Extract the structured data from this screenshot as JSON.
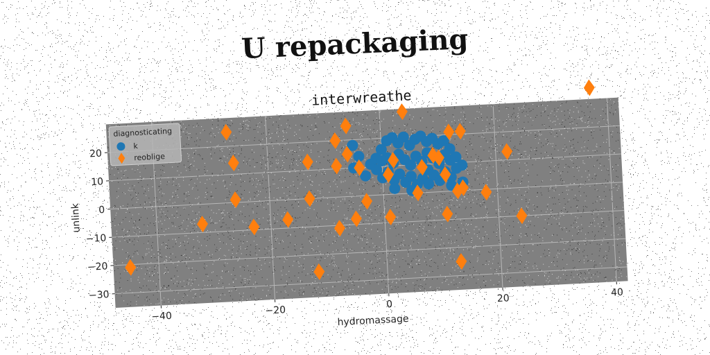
{
  "title": "U repackaging",
  "chart_data": {
    "type": "scatter",
    "title": "interwreathe",
    "xlabel": "hydromassage",
    "ylabel": "unlink",
    "xlim": [
      -48,
      42
    ],
    "ylim": [
      -35,
      30
    ],
    "xticks": [
      -40,
      -20,
      0,
      20,
      40
    ],
    "yticks": [
      -30,
      -20,
      -10,
      0,
      10,
      20
    ],
    "grid": true,
    "legend": {
      "title": "diagnosticating",
      "position": "top-left"
    },
    "colors": {
      "k": "#1f77b4",
      "reoblige": "#ff7f0e",
      "background": "#808080"
    },
    "series": [
      {
        "name": "k",
        "marker": "circle",
        "points": [
          [
            -5,
            18
          ],
          [
            -4,
            14
          ],
          [
            -5,
            10
          ],
          [
            -3,
            7
          ],
          [
            -2,
            11
          ],
          [
            -1,
            13
          ],
          [
            0,
            16
          ],
          [
            1,
            19
          ],
          [
            2,
            20
          ],
          [
            3,
            18
          ],
          [
            4,
            20
          ],
          [
            5,
            17
          ],
          [
            6,
            19
          ],
          [
            7,
            20
          ],
          [
            8,
            18
          ],
          [
            9,
            19
          ],
          [
            10,
            17
          ],
          [
            11,
            18
          ],
          [
            12,
            15
          ],
          [
            1,
            13
          ],
          [
            2,
            11
          ],
          [
            3,
            14
          ],
          [
            4,
            12
          ],
          [
            5,
            10
          ],
          [
            6,
            13
          ],
          [
            7,
            11
          ],
          [
            8,
            14
          ],
          [
            9,
            12
          ],
          [
            10,
            10
          ],
          [
            11,
            13
          ],
          [
            12,
            11
          ],
          [
            13,
            12
          ],
          [
            0,
            6
          ],
          [
            1,
            8
          ],
          [
            2,
            5
          ],
          [
            3,
            7
          ],
          [
            4,
            4
          ],
          [
            5,
            6
          ],
          [
            6,
            3
          ],
          [
            7,
            5
          ],
          [
            8,
            8
          ],
          [
            9,
            6
          ],
          [
            10,
            4
          ],
          [
            11,
            7
          ],
          [
            12,
            5
          ],
          [
            13,
            8
          ],
          [
            14,
            9
          ],
          [
            2,
            2
          ],
          [
            5,
            1
          ],
          [
            8,
            3
          ],
          [
            12,
            2
          ],
          [
            14,
            3
          ],
          [
            -1,
            9
          ],
          [
            0,
            12
          ]
        ]
      },
      {
        "name": "reoblige",
        "marker": "thin_diamond",
        "points": [
          [
            -45,
            -21
          ],
          [
            -32,
            -7
          ],
          [
            -27,
            25
          ],
          [
            -26,
            14
          ],
          [
            -26,
            1
          ],
          [
            -23,
            -9
          ],
          [
            -17,
            -7
          ],
          [
            -13,
            13
          ],
          [
            -13,
            0
          ],
          [
            -12,
            -26
          ],
          [
            -8,
            20
          ],
          [
            -8,
            11
          ],
          [
            -8,
            -11
          ],
          [
            -6,
            25
          ],
          [
            -6,
            15
          ],
          [
            -5,
            -8
          ],
          [
            -4,
            10
          ],
          [
            -3,
            -2
          ],
          [
            1,
            7
          ],
          [
            1,
            -8
          ],
          [
            2,
            12
          ],
          [
            4,
            29
          ],
          [
            6,
            0
          ],
          [
            7,
            9
          ],
          [
            9,
            13
          ],
          [
            10,
            12
          ],
          [
            11,
            -8
          ],
          [
            11,
            6
          ],
          [
            12,
            21
          ],
          [
            13,
            0
          ],
          [
            13,
            -25
          ],
          [
            14,
            1
          ],
          [
            14,
            21
          ],
          [
            18,
            -1
          ],
          [
            22,
            13
          ],
          [
            24,
            -10
          ],
          [
            37,
            34
          ]
        ]
      }
    ]
  }
}
